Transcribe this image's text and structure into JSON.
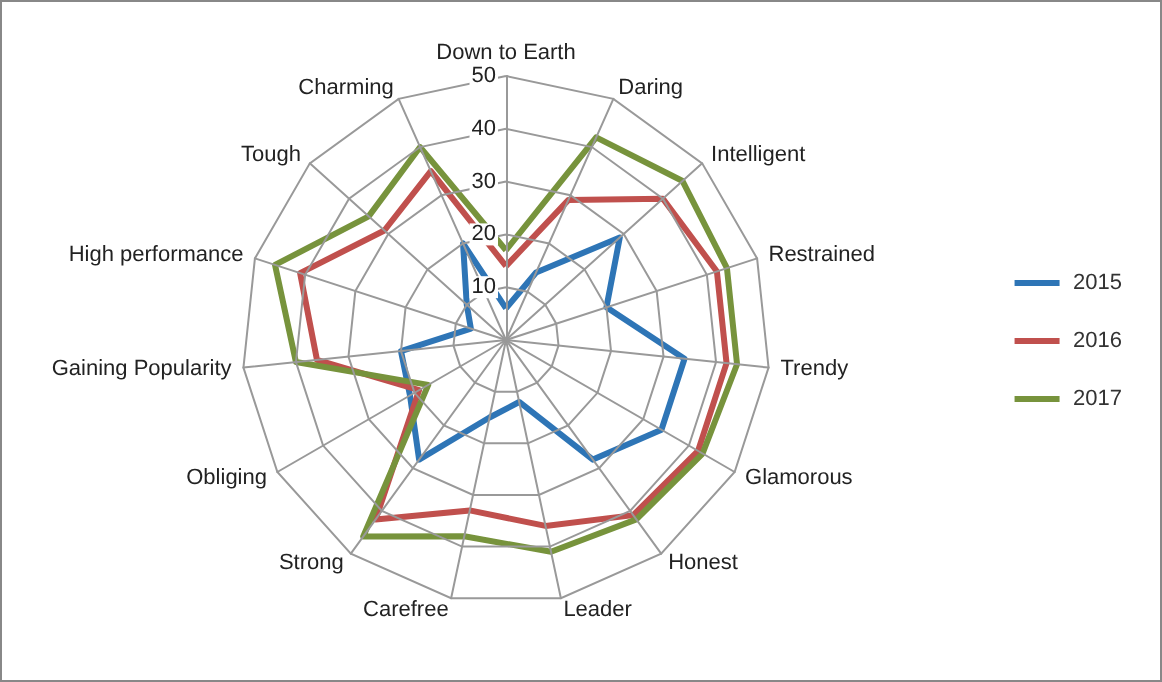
{
  "chart_data": {
    "type": "radar",
    "categories": [
      "Down to Earth",
      "Daring",
      "Intelligent",
      "Restrained",
      "Trendy",
      "Glamorous",
      "Honest",
      "Leader",
      "Carefree",
      "Strong",
      "Obliging",
      "Gaining Popularity",
      "High performance",
      "Tough",
      "Charming"
    ],
    "series": [
      {
        "name": "2015",
        "color": "#2e75b6",
        "values": [
          6,
          14,
          29,
          20,
          34,
          34,
          28,
          12,
          15,
          28,
          21,
          20,
          7,
          10,
          20
        ]
      },
      {
        "name": "2016",
        "color": "#c0504d",
        "values": [
          14,
          29,
          40,
          42,
          42,
          42,
          41,
          36,
          33,
          42,
          19,
          36,
          41,
          31,
          35
        ]
      },
      {
        "name": "2017",
        "color": "#77933c",
        "values": [
          17,
          42,
          45,
          44,
          44,
          43,
          42,
          41,
          38,
          46,
          17,
          40,
          46,
          35,
          40
        ]
      }
    ],
    "ylim": [
      0,
      50
    ],
    "yticks": [
      10,
      20,
      30,
      40,
      50
    ],
    "grid": true,
    "legend": "right",
    "marker": "none",
    "line_style": "solid"
  }
}
